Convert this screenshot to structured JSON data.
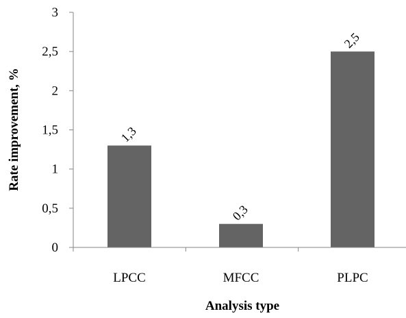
{
  "chart_data": {
    "type": "bar",
    "categories": [
      "LPCC",
      "MFCC",
      "PLPC"
    ],
    "series": [
      {
        "values": [
          1.3,
          0.3,
          2.5
        ],
        "color": "#646464"
      }
    ],
    "data_labels": [
      "1,3",
      "0,3",
      "2,5"
    ],
    "xlabel": "Analysis type",
    "ylabel": "Rate improvement, %",
    "ylim": [
      0,
      3
    ],
    "yticks": [
      0,
      0.5,
      1,
      1.5,
      2,
      2.5,
      3
    ],
    "ytick_labels": [
      "0",
      "0,5",
      "1",
      "1,5",
      "2",
      "2,5",
      "3"
    ],
    "grid": false,
    "legend": "none",
    "axis_color": "#868686"
  }
}
